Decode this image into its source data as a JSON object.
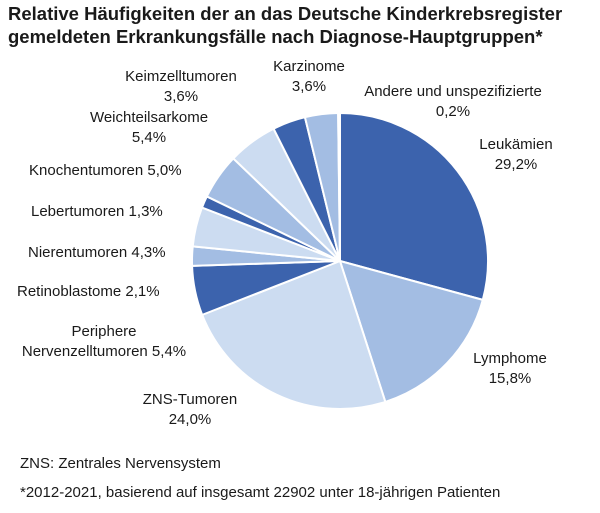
{
  "title_lines": [
    "Relative Häufigkeiten der an das Deutsche Kinderkrebsregister",
    "gemeldeten Erkrankungsfälle nach Diagnose-Hauptgruppen*"
  ],
  "footnotes": {
    "abbreviation": "ZNS: Zentrales Nervensystem",
    "source": "*2012-2021, basierend auf insgesamt 22902 unter 18-jährigen Patienten"
  },
  "chart_data": {
    "type": "pie",
    "start": "12 o'clock, clockwise",
    "slices": [
      {
        "name": "Leukämien",
        "value": 29.2,
        "label_lines": [
          "Leukämien",
          "29,2%"
        ],
        "color": "#3c63ad"
      },
      {
        "name": "Lymphome",
        "value": 15.8,
        "label_lines": [
          "Lymphome",
          "15,8%"
        ],
        "color": "#a3bde3"
      },
      {
        "name": "ZNS-Tumoren",
        "value": 24.0,
        "label_lines": [
          "ZNS-Tumoren",
          "24,0%"
        ],
        "color": "#ccdcf1"
      },
      {
        "name": "Periphere Nervenzelltumoren",
        "value": 5.4,
        "label_lines": [
          "Periphere",
          "Nervenzelltumoren 5,4%"
        ],
        "color": "#3c63ad"
      },
      {
        "name": "Retinoblastome",
        "value": 2.1,
        "label_lines": [
          "Retinoblastome 2,1%"
        ],
        "color": "#a3bde3"
      },
      {
        "name": "Nierentumoren",
        "value": 4.3,
        "label_lines": [
          "Nierentumoren 4,3%"
        ],
        "color": "#ccdcf1"
      },
      {
        "name": "Lebertumoren",
        "value": 1.3,
        "label_lines": [
          "Lebertumoren 1,3%"
        ],
        "color": "#3c63ad"
      },
      {
        "name": "Knochentumoren",
        "value": 5.0,
        "label_lines": [
          "Knochentumoren 5,0%"
        ],
        "color": "#a3bde3"
      },
      {
        "name": "Weichteilsarkome",
        "value": 5.4,
        "label_lines": [
          "Weichteilsarkome",
          "5,4%"
        ],
        "color": "#ccdcf1"
      },
      {
        "name": "Keimzelltumoren",
        "value": 3.6,
        "label_lines": [
          "Keimzelltumoren",
          "3,6%"
        ],
        "color": "#3c63ad"
      },
      {
        "name": "Karzinome",
        "value": 3.6,
        "label_lines": [
          "Karzinome",
          "3,6%"
        ],
        "color": "#a3bde3"
      },
      {
        "name": "Andere und unspezifizierte",
        "value": 0.2,
        "label_lines": [
          "Andere und unspezifizierte",
          "0,2%"
        ],
        "color": "#ccdcf1"
      }
    ]
  }
}
